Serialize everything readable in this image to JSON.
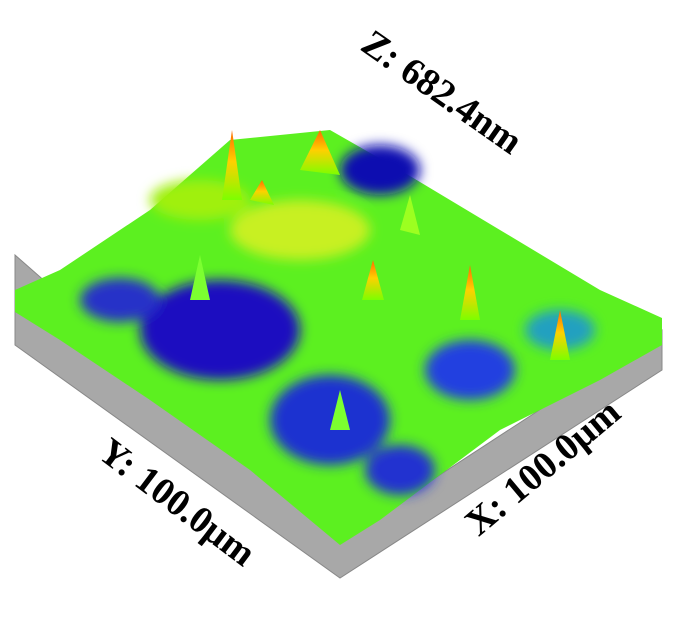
{
  "labels": {
    "z": "Z: 682.4nm",
    "y": "Y: 100.0μm",
    "x": "X: 100.0μm"
  }
}
